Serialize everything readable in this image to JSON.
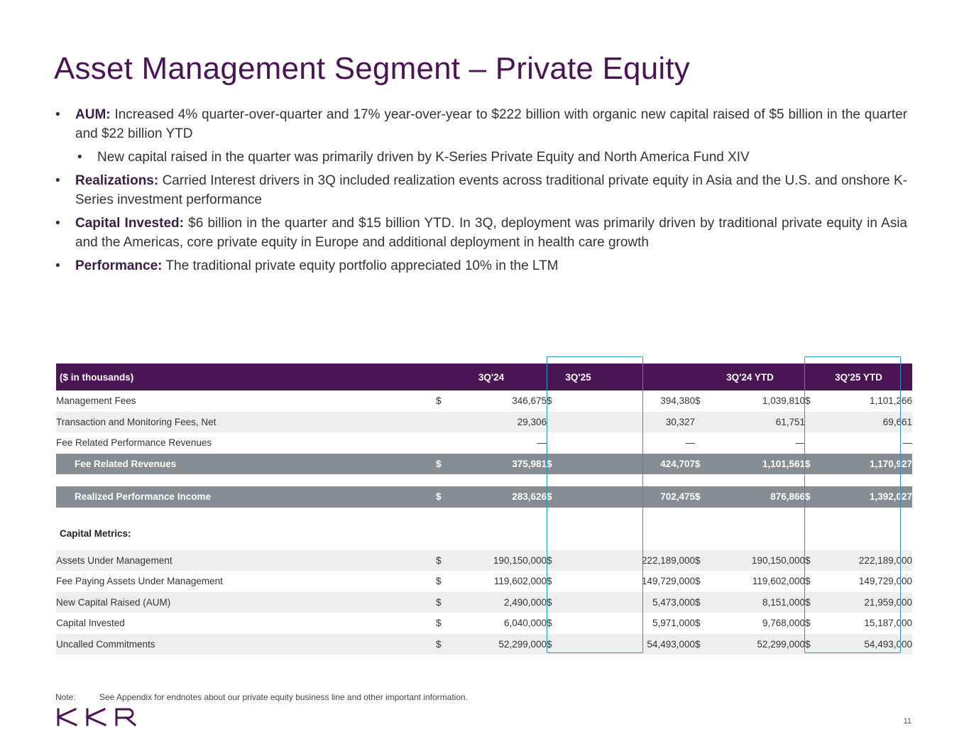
{
  "title": "Asset Management Segment – Private Equity",
  "bullets": {
    "aum": {
      "label": "AUM:",
      "text": " Increased 4% quarter-over-quarter and 17% year-over-year to $222 billion with organic new capital raised of $5 billion in the quarter and $22 billion YTD"
    },
    "aum_sub": {
      "text": "New capital raised in the quarter was primarily driven by K-Series Private Equity and North America Fund XIV"
    },
    "realizations": {
      "label": "Realizations:",
      "text": " Carried Interest drivers in 3Q included realization events across traditional private equity in Asia and the U.S. and onshore K-Series investment performance"
    },
    "capital": {
      "label": "Capital Invested:",
      "text": " $6 billion in the quarter and $15 billion YTD. In 3Q, deployment was primarily driven by traditional private equity in Asia and the Americas, core private equity in Europe and additional deployment in health care growth"
    },
    "performance": {
      "label": "Performance:",
      "text": " The traditional private equity portfolio appreciated 10% in the LTM"
    }
  },
  "table": {
    "header": {
      "label": "($ in thousands)",
      "cols": [
        "3Q'24",
        "3Q'25",
        "3Q'24 YTD",
        "3Q'25 YTD"
      ]
    },
    "rows": [
      {
        "label": "Management Fees",
        "d": [
          "$",
          "$",
          "$",
          "$"
        ],
        "v": [
          "346,675",
          "394,380",
          "1,039,810",
          "1,101,266"
        ]
      },
      {
        "label": "Transaction and Monitoring Fees, Net",
        "d": [
          "",
          "",
          "",
          ""
        ],
        "v": [
          "29,306",
          "30,327",
          "61,751",
          "69,661"
        ]
      },
      {
        "label": "Fee Related Performance Revenues",
        "d": [
          "",
          "",
          "",
          ""
        ],
        "v": [
          "—",
          "—",
          "—",
          "—"
        ]
      },
      {
        "label": "Fee Related Revenues",
        "d": [
          "$",
          "$",
          "$",
          "$"
        ],
        "v": [
          "375,981",
          "424,707",
          "1,101,561",
          "1,170,927"
        ]
      },
      {
        "label": "Realized Performance Income",
        "d": [
          "$",
          "$",
          "$",
          "$"
        ],
        "v": [
          "283,626",
          "702,475",
          "876,866",
          "1,392,027"
        ]
      }
    ],
    "section_label": "Capital Metrics:",
    "metrics": [
      {
        "label": "Assets Under Management",
        "d": [
          "$",
          "$",
          "$",
          "$"
        ],
        "v": [
          "190,150,000",
          "222,189,000",
          "190,150,000",
          "222,189,000"
        ]
      },
      {
        "label": "Fee Paying Assets Under Management",
        "d": [
          "$",
          "$",
          "$",
          "$"
        ],
        "v": [
          "119,602,000",
          "149,729,000",
          "119,602,000",
          "149,729,000"
        ]
      },
      {
        "label": "New Capital Raised (AUM)",
        "d": [
          "$",
          "$",
          "$",
          "$"
        ],
        "v": [
          "2,490,000",
          "5,473,000",
          "8,151,000",
          "21,959,000"
        ]
      },
      {
        "label": "Capital Invested",
        "d": [
          "$",
          "$",
          "$",
          "$"
        ],
        "v": [
          "6,040,000",
          "5,971,000",
          "9,768,000",
          "15,187,000"
        ]
      },
      {
        "label": "Uncalled Commitments",
        "d": [
          "$",
          "$",
          "$",
          "$"
        ],
        "v": [
          "52,299,000",
          "54,493,000",
          "52,299,000",
          "54,493,000"
        ]
      }
    ]
  },
  "note": {
    "label": "Note:",
    "text": "See Appendix for endnotes about our private equity business line and other important information."
  },
  "logo": {
    "text": "KKR",
    "color": "#4a1553"
  },
  "page_number": "11",
  "colors": {
    "brand": "#4a1553",
    "header_bg": "#4a1553",
    "total_bg": "#868e93",
    "highlight": "#2596be"
  }
}
